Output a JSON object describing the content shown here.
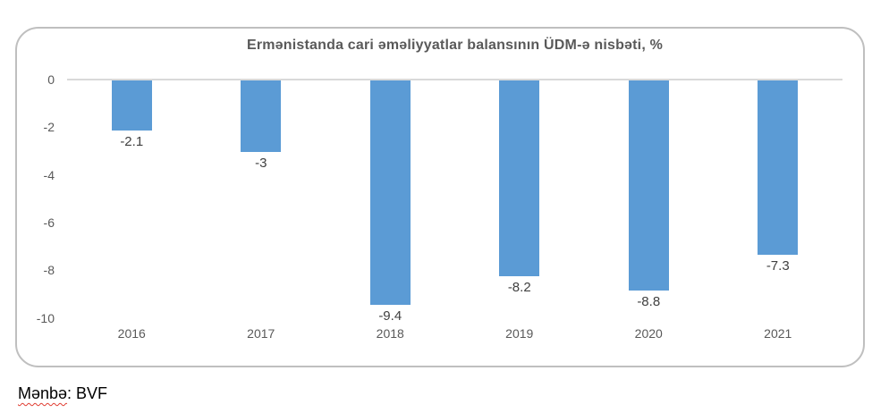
{
  "chart_data": {
    "type": "bar",
    "title": "Ermənistanda cari əməliyyatlar balansının ÜDM-ə nisbəti, %",
    "categories": [
      "2016",
      "2017",
      "2018",
      "2019",
      "2020",
      "2021"
    ],
    "values": [
      -2.1,
      -3,
      -9.4,
      -8.2,
      -8.8,
      -7.3
    ],
    "data_labels": [
      "-2.1",
      "-3",
      "-9.4",
      "-8.2",
      "-8.8",
      "-7.3"
    ],
    "y_ticks": [
      0,
      -2,
      -4,
      -6,
      -8,
      -10
    ],
    "ylim": [
      -10.8,
      0
    ],
    "xlabel": "",
    "ylabel": "",
    "legend_position": "none",
    "grid": false,
    "bar_color": "#5B9BD5",
    "axis_line_color": "#D9D9D9",
    "frame_border_color": "#BFBFBF",
    "title_color": "#595959",
    "tick_label_color": "#595959",
    "data_label_color": "#404040"
  },
  "source": {
    "label": "Mənbə",
    "rest": ": BVF"
  }
}
